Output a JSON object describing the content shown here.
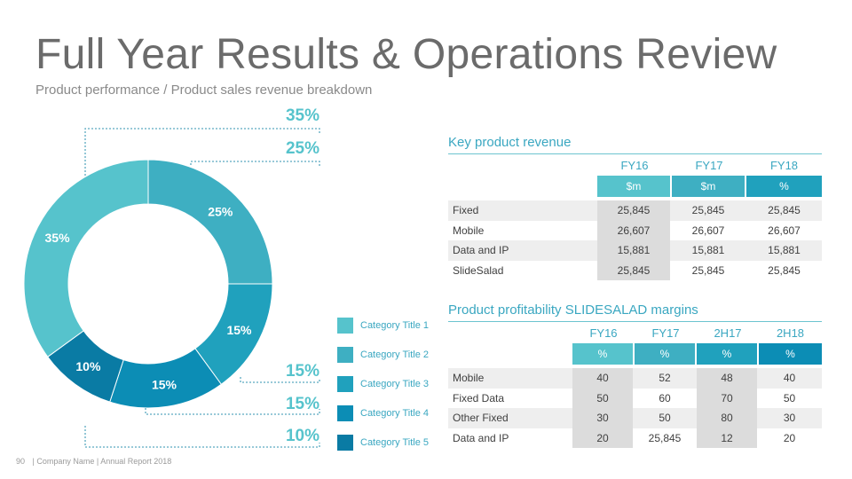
{
  "title": "Full Year Results & Operations Review",
  "subtitle": "Product performance / Product sales revenue breakdown",
  "footer": {
    "page_number": "90",
    "text": "| Company Name | Annual Report 2018"
  },
  "chart_data": {
    "type": "pie",
    "donut": true,
    "categories": [
      "Category Title 1",
      "Category Title 2",
      "Category Title 3",
      "Category Title 4",
      "Category Title 5"
    ],
    "values": [
      35,
      25,
      15,
      15,
      10
    ],
    "slice_order_clockwise_from_top": [
      2,
      3,
      4,
      5,
      1
    ],
    "data_labels": [
      "35%",
      "25%",
      "15%",
      "15%",
      "10%"
    ],
    "colors": [
      "#56c3cc",
      "#3eafc2",
      "#20a1bd",
      "#0c8db5",
      "#0a7ba4"
    ],
    "legend": "right"
  },
  "callouts": [
    "35%",
    "25%",
    "15%",
    "15%",
    "10%"
  ],
  "table1": {
    "title": "Key product revenue",
    "columns": [
      "FY16",
      "FY17",
      "FY18"
    ],
    "units": [
      "$m",
      "$m",
      "%"
    ],
    "rows": [
      {
        "label": "Fixed",
        "values": [
          "25,845",
          "25,845",
          "25,845"
        ]
      },
      {
        "label": "Mobile",
        "values": [
          "26,607",
          "26,607",
          "26,607"
        ]
      },
      {
        "label": "Data and IP",
        "values": [
          "15,881",
          "15,881",
          "15,881"
        ]
      },
      {
        "label": "SlideSalad",
        "values": [
          "25,845",
          "25,845",
          "25,845"
        ]
      }
    ]
  },
  "table2": {
    "title": "Product profitability SLIDESALAD margins",
    "columns": [
      "FY16",
      "FY17",
      "2H17",
      "2H18"
    ],
    "units": [
      "%",
      "%",
      "%",
      "%"
    ],
    "rows": [
      {
        "label": "Mobile",
        "values": [
          "40",
          "52",
          "48",
          "40"
        ]
      },
      {
        "label": "Fixed Data",
        "values": [
          "50",
          "60",
          "70",
          "50"
        ]
      },
      {
        "label": "Other Fixed",
        "values": [
          "30",
          "50",
          "80",
          "30"
        ]
      },
      {
        "label": "Data and IP",
        "values": [
          "20",
          "25,845",
          "12",
          "20"
        ]
      }
    ]
  }
}
